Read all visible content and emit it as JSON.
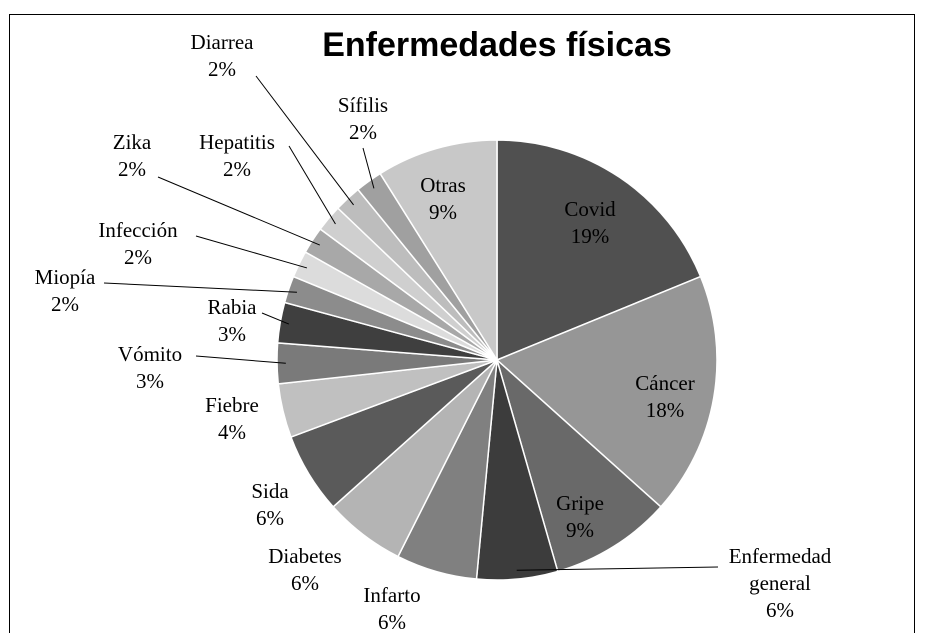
{
  "chart_data": {
    "type": "pie",
    "title": "Enfermedades físicas",
    "categories": [
      "Covid",
      "Cáncer",
      "Gripe",
      "Enfermedad general",
      "Infarto",
      "Diabetes",
      "Sida",
      "Fiebre",
      "Vómito",
      "Rabia",
      "Miopía",
      "Infección",
      "Zika",
      "Hepatitis",
      "Diarrea",
      "Sífilis",
      "Otras"
    ],
    "values": [
      19,
      18,
      9,
      6,
      6,
      6,
      6,
      4,
      3,
      3,
      2,
      2,
      2,
      2,
      2,
      2,
      9
    ],
    "value_labels": [
      "19%",
      "18%",
      "9%",
      "6%",
      "6%",
      "6%",
      "6%",
      "4%",
      "3%",
      "3%",
      "2%",
      "2%",
      "2%",
      "2%",
      "2%",
      "2%",
      "9%"
    ],
    "colors": [
      "#505050",
      "#969696",
      "#696969",
      "#3c3c3c",
      "#808080",
      "#b4b4b4",
      "#5a5a5a",
      "#c0c0c0",
      "#7a7a7a",
      "#3f3f3f",
      "#8c8c8c",
      "#dcdcdc",
      "#a8a8a8",
      "#cfcfcf",
      "#bdbdbd",
      "#a0a0a0",
      "#c8c8c8"
    ]
  }
}
